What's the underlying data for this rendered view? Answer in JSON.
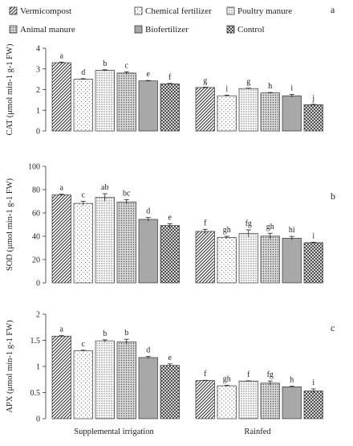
{
  "legend": [
    {
      "name": "Vermicompost",
      "pattern": "diag"
    },
    {
      "name": "Chemical fertilizer",
      "pattern": "dots"
    },
    {
      "name": "Poultry manure",
      "pattern": "dense-dots"
    },
    {
      "name": "Animal manure",
      "pattern": "grid"
    },
    {
      "name": "Biofertilizer",
      "pattern": "gray"
    },
    {
      "name": "Control",
      "pattern": "crosshatch"
    }
  ],
  "groups": [
    "Supplemental irrigation",
    "Rainfed"
  ],
  "colors": {
    "axis": "#333333",
    "bar_stroke": "#333333",
    "gray_fill": "#a8a8a8"
  },
  "chart_data": [
    {
      "type": "bar",
      "panel": "a",
      "ylabel": "CAT (μmol min-1 g-1 FW)",
      "ylim": [
        0,
        4
      ],
      "yticks": [
        "0",
        "1",
        "2",
        "3",
        "4"
      ],
      "series_values": [
        [
          3.3,
          2.5,
          2.93,
          2.8,
          2.42,
          2.28
        ],
        [
          2.1,
          1.7,
          2.05,
          1.84,
          1.7,
          1.27
        ]
      ],
      "errors": [
        [
          0.03,
          0.03,
          0.03,
          0.06,
          0.02,
          0.02
        ],
        [
          0.02,
          0.03,
          0.02,
          0.02,
          0.07,
          0.02
        ]
      ],
      "letters": [
        [
          "a",
          "d",
          "b",
          "c",
          "e",
          "f"
        ],
        [
          "g",
          "i",
          "g",
          "h",
          "i",
          "j"
        ]
      ]
    },
    {
      "type": "bar",
      "panel": "b",
      "ylabel": "SOD (μmol min-1 g-1 FW)",
      "ylim": [
        0,
        100
      ],
      "yticks": [
        "0",
        "20",
        "40",
        "60",
        "80",
        "100"
      ],
      "series_values": [
        [
          75.5,
          68.2,
          73.3,
          69.4,
          54.5,
          49.2
        ],
        [
          44.2,
          39.0,
          42.3,
          40.1,
          38.3,
          34.5
        ]
      ],
      "errors": [
        [
          0.6,
          1.8,
          3.2,
          2.0,
          1.6,
          1.6
        ],
        [
          1.8,
          1.0,
          3.2,
          2.5,
          1.6,
          0.4
        ]
      ],
      "letters": [
        [
          "a",
          "c",
          "ab",
          "bc",
          "d",
          "e"
        ],
        [
          "f",
          "gh",
          "fg",
          "gh",
          "hi",
          "i"
        ]
      ]
    },
    {
      "type": "bar",
      "panel": "c",
      "ylabel": "APX (μmol min-1 g-1 FW)",
      "ylim": [
        0,
        2
      ],
      "yticks": [
        "0",
        "0.5",
        "1",
        "1.5",
        "2"
      ],
      "series_values": [
        [
          1.58,
          1.3,
          1.49,
          1.47,
          1.17,
          1.02
        ],
        [
          0.73,
          0.63,
          0.72,
          0.68,
          0.61,
          0.53
        ]
      ],
      "errors": [
        [
          0.01,
          0.01,
          0.02,
          0.05,
          0.02,
          0.03
        ],
        [
          0.005,
          0.01,
          0.005,
          0.04,
          0.01,
          0.04
        ]
      ],
      "letters": [
        [
          "a",
          "c",
          "b",
          "b",
          "d",
          "e"
        ],
        [
          "f",
          "gh",
          "f",
          "fg",
          "h",
          "i"
        ]
      ]
    }
  ]
}
